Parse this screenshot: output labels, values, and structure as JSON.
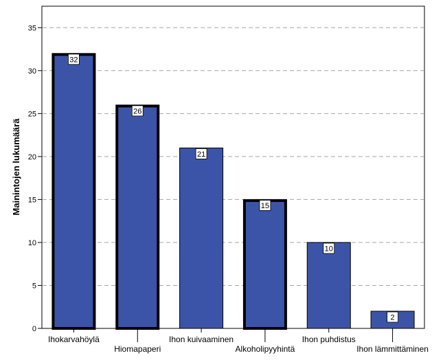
{
  "chart_data": {
    "type": "bar",
    "title": "",
    "xlabel": "",
    "ylabel": "Mainintojen lukumäärä",
    "categories": [
      "Ihokarvahöylä",
      "Hiomapaperi",
      "Ihon kuivaaminen",
      "Alkoholipyyhintä",
      "Ihon puhdistus",
      "Ihon lämmittäminen"
    ],
    "values": [
      32,
      26,
      21,
      15,
      10,
      2
    ],
    "highlighted": [
      true,
      true,
      false,
      true,
      false,
      false
    ],
    "ylim": [
      0,
      37.5
    ],
    "yticks": [
      0,
      5,
      10,
      15,
      20,
      25,
      30,
      35
    ],
    "grid": "horizontal dashed",
    "legend": "none",
    "colors": {
      "bar": "#3c54a8",
      "highlight_border": "#000000",
      "grid": "#a6a6a6",
      "background": "#ffffff"
    }
  }
}
